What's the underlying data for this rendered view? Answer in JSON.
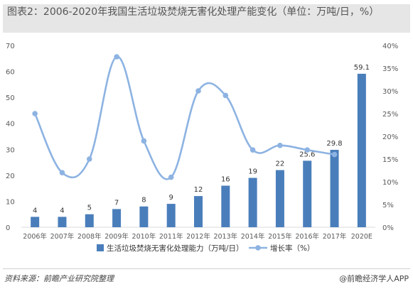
{
  "title": "图表2：2006-2020年我国生活垃圾焚烧无害化处理产能变化（单位：万吨/日，%）",
  "source": "资料来源：前瞻产业研究院整理",
  "brand": "@前瞻经济学人APP",
  "colors": {
    "bar": "#4a7ebb",
    "line": "#8db3e2",
    "grid": "#d9d9d9",
    "axis_text": "#595959"
  },
  "chart_data": {
    "type": "bar",
    "categories": [
      "2006年",
      "2007年",
      "2008年",
      "2009年",
      "2010年",
      "2011年",
      "2012年",
      "2013年",
      "2014年",
      "2015年",
      "2016年",
      "2017年",
      "2020E"
    ],
    "series": [
      {
        "name": "生活垃圾焚烧无害化处理能力（万吨/日）",
        "type": "bar",
        "axis": "left",
        "values": [
          4,
          4,
          5,
          7,
          8,
          9,
          12,
          16,
          19,
          22,
          25.6,
          29.8,
          59.1
        ],
        "labels": [
          "4",
          "4",
          "5",
          "7",
          "8",
          "9",
          "12",
          "16",
          "19",
          "22",
          "25.6",
          "29.8",
          "59.1"
        ]
      },
      {
        "name": "增长率（%）",
        "type": "line",
        "axis": "right",
        "values": [
          25,
          12,
          15,
          37.5,
          19,
          11,
          30,
          29,
          17,
          18,
          17,
          16,
          null
        ]
      }
    ],
    "y_left": {
      "ylim": [
        0,
        70
      ],
      "ticks": [
        "0",
        "10",
        "20",
        "30",
        "40",
        "50",
        "60",
        "70"
      ]
    },
    "y_right": {
      "ylim": [
        0,
        40
      ],
      "ticks": [
        "0%",
        "5%",
        "10%",
        "15%",
        "20%",
        "25%",
        "30%",
        "35%",
        "40%"
      ]
    },
    "legend_position": "bottom",
    "grid": false
  }
}
